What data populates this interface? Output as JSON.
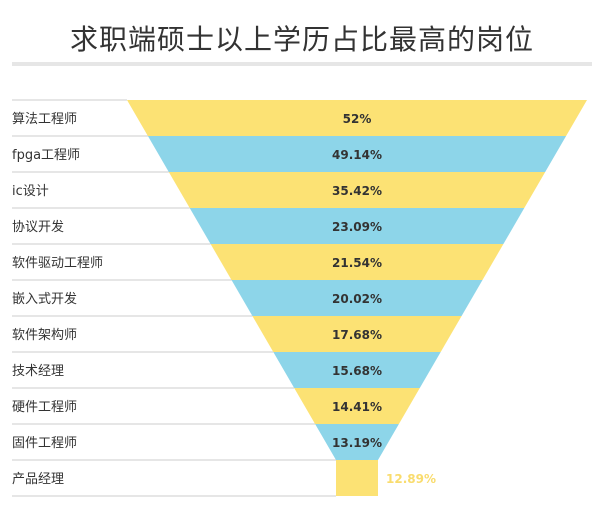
{
  "header": {
    "title": "求职端硕士以上学历占比最高的岗位"
  },
  "colors": {
    "yellow": "#fce274",
    "blue": "#8dd5e9",
    "outside_label": "#f9dc6e",
    "separator": "#cccccc"
  },
  "chart_data": {
    "type": "funnel",
    "title": "求职端硕士以上学历占比最高的岗位",
    "unit": "%",
    "categories": [
      "算法工程师",
      "fpga工程师",
      "ic设计",
      "协议开发",
      "软件驱动工程师",
      "嵌入式开发",
      "软件架构师",
      "技术经理",
      "硬件工程师",
      "固件工程师",
      "产品经理"
    ],
    "values": [
      52,
      49.14,
      35.42,
      23.09,
      21.54,
      20.02,
      17.68,
      15.68,
      14.41,
      13.19,
      12.89
    ],
    "value_labels": [
      "52%",
      "49.14%",
      "35.42%",
      "23.09%",
      "21.54%",
      "20.02%",
      "17.68%",
      "15.68%",
      "14.41%",
      "13.19%",
      "12.89%"
    ],
    "last_label_position": "outside-right",
    "bar_colors_alternate": [
      "#fce274",
      "#8dd5e9"
    ]
  }
}
